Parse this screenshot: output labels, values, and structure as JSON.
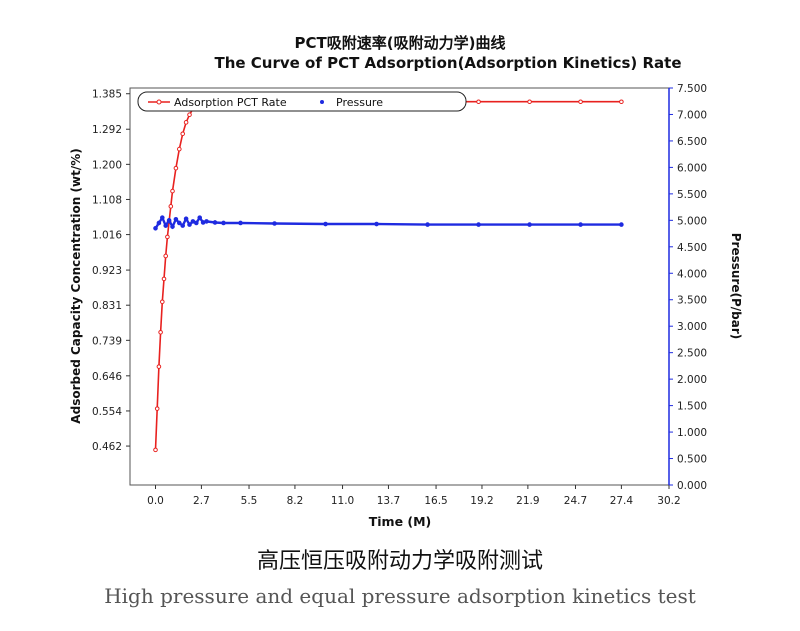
{
  "chart_data": {
    "type": "line",
    "title": "PCT吸附速率(吸附动力学)曲线",
    "subtitle": "The Curve of PCT Adsorption(Adsorption Kinetics) Rate",
    "xlabel": "Time (M)",
    "ylabel": "Adsorbed Capacity Concentration (wt/%)",
    "y2label": "Pressure(P/bar)",
    "xlim": [
      -1.5,
      30.2
    ],
    "ylim": [
      0.36,
      1.4
    ],
    "y2lim": [
      0.0,
      7.5
    ],
    "x_ticks": [
      "0.0",
      "2.7",
      "5.5",
      "8.2",
      "11.0",
      "13.7",
      "16.5",
      "19.2",
      "21.9",
      "24.7",
      "27.4",
      "30.2"
    ],
    "y_ticks": [
      "1.385",
      "1.292",
      "1.200",
      "1.108",
      "1.016",
      "0.923",
      "0.831",
      "0.739",
      "0.646",
      "0.554",
      "0.462"
    ],
    "y2_ticks": [
      "7.500",
      "7.000",
      "6.500",
      "6.000",
      "5.500",
      "5.000",
      "4.500",
      "4.000",
      "3.500",
      "3.000",
      "2.500",
      "2.000",
      "1.500",
      "1.000",
      "0.500",
      "0.000"
    ],
    "legend_position": "top-left",
    "grid": false,
    "series": [
      {
        "name": "Adsorption PCT Rate",
        "axis": "left",
        "color": "#e8211f",
        "x": [
          0.0,
          0.1,
          0.2,
          0.3,
          0.4,
          0.5,
          0.6,
          0.7,
          0.8,
          0.9,
          1.0,
          1.2,
          1.4,
          1.6,
          1.8,
          2.0,
          2.2,
          2.4,
          2.6,
          2.8,
          3.0,
          3.3,
          3.6,
          4.0,
          5.0,
          7.0,
          10.0,
          13.0,
          16.0,
          19.0,
          22.0,
          25.0,
          27.4
        ],
        "values": [
          0.452,
          0.56,
          0.67,
          0.76,
          0.84,
          0.9,
          0.96,
          1.01,
          1.05,
          1.09,
          1.13,
          1.19,
          1.24,
          1.28,
          1.31,
          1.33,
          1.345,
          1.355,
          1.36,
          1.362,
          1.363,
          1.364,
          1.364,
          1.364,
          1.364,
          1.364,
          1.364,
          1.364,
          1.364,
          1.364,
          1.364,
          1.364,
          1.364
        ]
      },
      {
        "name": "Pressure",
        "axis": "right",
        "color": "#1f2be0",
        "x": [
          0.0,
          0.2,
          0.4,
          0.6,
          0.8,
          1.0,
          1.2,
          1.4,
          1.6,
          1.8,
          2.0,
          2.2,
          2.4,
          2.6,
          2.8,
          3.0,
          3.5,
          4.0,
          5.0,
          7.0,
          10.0,
          13.0,
          16.0,
          19.0,
          22.0,
          25.0,
          27.4
        ],
        "values": [
          4.85,
          4.95,
          5.05,
          4.9,
          5.0,
          4.88,
          5.02,
          4.95,
          4.9,
          5.03,
          4.92,
          4.98,
          4.95,
          5.05,
          4.96,
          4.98,
          4.96,
          4.95,
          4.95,
          4.94,
          4.93,
          4.93,
          4.92,
          4.92,
          4.92,
          4.92,
          4.92
        ]
      }
    ]
  },
  "caption": {
    "chinese": "高压恒压吸附动力学吸附测试",
    "english": "High pressure and equal pressure adsorption kinetics test"
  }
}
